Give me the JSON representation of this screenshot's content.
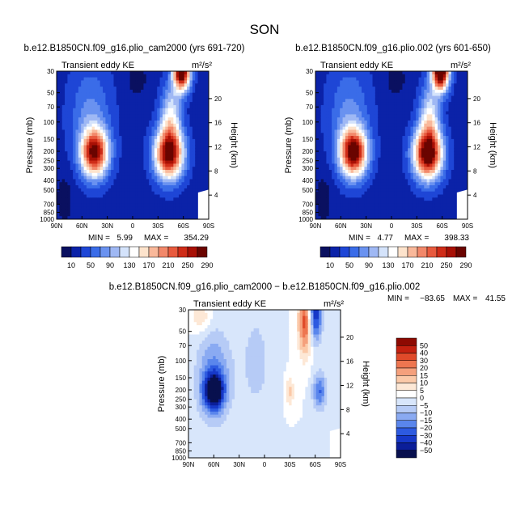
{
  "figure": {
    "season": "SON",
    "colors": {
      "ke_levels": [
        "#0a1060",
        "#0b22a8",
        "#1e46d6",
        "#3a6ce8",
        "#6a92f0",
        "#9fb8f4",
        "#d4e3fb",
        "#ffffff",
        "#fde3cc",
        "#f9b89a",
        "#f2886a",
        "#e85a3e",
        "#cf2c18",
        "#a81005",
        "#6a0400"
      ],
      "diff_levels": [
        "#08104e",
        "#0b1e99",
        "#1638c8",
        "#2d5ae0",
        "#5a86ec",
        "#8aaaf2",
        "#b6cbf6",
        "#d8e6fb",
        "#ffffff",
        "#fde8d6",
        "#fbc9a8",
        "#f5a07c",
        "#ee7650",
        "#e04a2a",
        "#c42110",
        "#8e0a02"
      ]
    },
    "panels": [
      {
        "id": "left",
        "title": "b.e12.B1850CN.f09_g16.plio_cam2000 (yrs 691-720)",
        "variable": "Transient eddy KE",
        "units": "m²/s²",
        "ylabel": "Pressure (mb)",
        "ylabel_right": "Height (km)",
        "pressure_ticks": [
          30,
          50,
          70,
          100,
          150,
          200,
          250,
          300,
          400,
          500,
          700,
          850,
          1000
        ],
        "height_ticks": [
          4,
          8,
          12,
          16,
          20
        ],
        "lat_ticks": [
          "90N",
          "60N",
          "30N",
          "0",
          "30S",
          "60S",
          "90S"
        ],
        "min_label": "MIN =",
        "min_value": "5.99",
        "max_label": "MAX =",
        "max_value": "354.29",
        "colorbar": [
          "10",
          "50",
          "90",
          "130",
          "170",
          "210",
          "250",
          "290"
        ],
        "chart_data": {
          "type": "heatmap",
          "x": [
            -90,
            -60,
            -30,
            0,
            30,
            60,
            90
          ],
          "xlabels": [
            "90N",
            "60N",
            "30N",
            "0",
            "30S",
            "60S",
            "90S"
          ],
          "y_pressure_range": [
            1000,
            30
          ],
          "min": 5.99,
          "max": 354.29,
          "maxima": [
            {
              "lat": 45,
              "pressure": 250,
              "value": 270
            },
            {
              "lat": -45,
              "pressure": 280,
              "value": 300
            },
            {
              "lat": -60,
              "pressure": 30,
              "value": 354
            }
          ]
        }
      },
      {
        "id": "right",
        "title": "b.e12.B1850CN.f09_g16.plio.002 (yrs 601-650)",
        "variable": "Transient eddy KE",
        "units": "m²/s²",
        "ylabel": "Pressure (mb)",
        "ylabel_right": "Height (km)",
        "pressure_ticks": [
          30,
          50,
          70,
          100,
          150,
          200,
          250,
          300,
          400,
          500,
          700,
          850,
          1000
        ],
        "height_ticks": [
          4,
          8,
          12,
          16,
          20
        ],
        "lat_ticks": [
          "90N",
          "60N",
          "30N",
          "0",
          "30S",
          "60S",
          "90S"
        ],
        "min_label": "MIN =",
        "min_value": "4.77",
        "max_label": "MAX =",
        "max_value": "398.33",
        "colorbar": [
          "10",
          "50",
          "90",
          "130",
          "170",
          "210",
          "250",
          "290"
        ],
        "chart_data": {
          "type": "heatmap",
          "x": [
            -90,
            -60,
            -30,
            0,
            30,
            60,
            90
          ],
          "xlabels": [
            "90N",
            "60N",
            "30N",
            "0",
            "30S",
            "60S",
            "90S"
          ],
          "y_pressure_range": [
            1000,
            30
          ],
          "min": 4.77,
          "max": 398.33,
          "maxima": [
            {
              "lat": 45,
              "pressure": 260,
              "value": 300
            },
            {
              "lat": -45,
              "pressure": 280,
              "value": 320
            },
            {
              "lat": -60,
              "pressure": 30,
              "value": 398
            }
          ]
        }
      },
      {
        "id": "diff",
        "title": "b.e12.B1850CN.f09_g16.plio_cam2000 − b.e12.B1850CN.f09_g16.plio.002",
        "variable": "Transient eddy KE",
        "units": "m²/s²",
        "ylabel": "Pressure (mb)",
        "ylabel_right": "Height (km)",
        "pressure_ticks": [
          30,
          50,
          70,
          100,
          150,
          200,
          250,
          300,
          400,
          500,
          700,
          850,
          1000
        ],
        "height_ticks": [
          4,
          8,
          12,
          16,
          20
        ],
        "lat_ticks": [
          "90N",
          "60N",
          "30N",
          "0",
          "30S",
          "60S",
          "90S"
        ],
        "min_label": "MIN =",
        "min_value": "−83.65",
        "max_label": "MAX =",
        "max_value": "41.55",
        "colorbar": [
          "50",
          "40",
          "30",
          "20",
          "15",
          "10",
          "5",
          "0",
          "−5",
          "−10",
          "−15",
          "−20",
          "−30",
          "−40",
          "−50"
        ],
        "chart_data": {
          "type": "heatmap",
          "x": [
            -90,
            -60,
            -30,
            0,
            30,
            60,
            90
          ],
          "xlabels": [
            "90N",
            "60N",
            "30N",
            "0",
            "30S",
            "60S",
            "90S"
          ],
          "y_pressure_range": [
            1000,
            30
          ],
          "min": -83.65,
          "max": 41.55,
          "extrema": [
            {
              "lat": 60,
              "pressure": 300,
              "value": -50
            },
            {
              "lat": -60,
              "pressure": 30,
              "value": -83.65
            },
            {
              "lat": -45,
              "pressure": 40,
              "value": 41.55
            },
            {
              "lat": -65,
              "pressure": 300,
              "value": -30
            },
            {
              "lat": -30,
              "pressure": 300,
              "value": 15
            }
          ]
        }
      }
    ]
  }
}
